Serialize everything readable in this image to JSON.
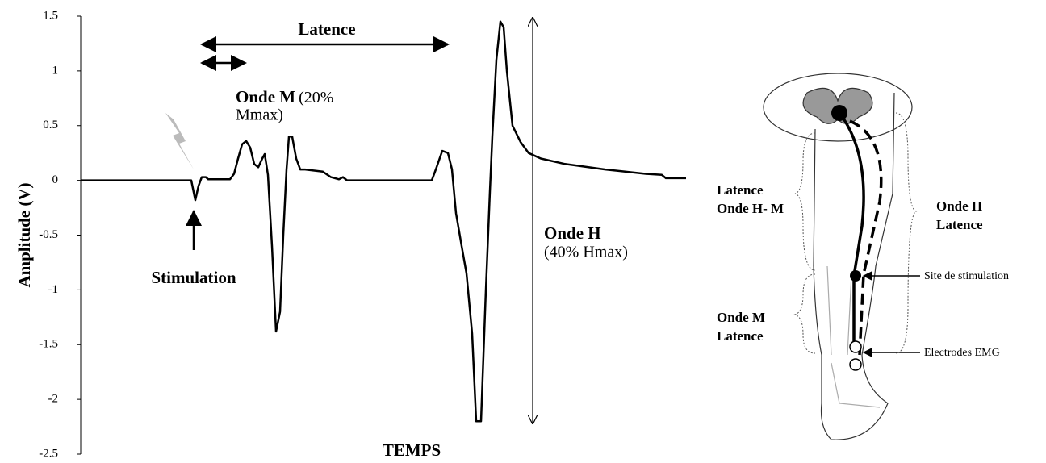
{
  "chart_data": {
    "type": "line",
    "ylabel": "Amplitude (V)",
    "xlabel": "TEMPS",
    "ylim": [
      -2.5,
      1.5
    ],
    "yticks": [
      1.5,
      1,
      0.5,
      0,
      -0.5,
      -1,
      -1.5,
      -2,
      -2.5
    ],
    "xlim": [
      0,
      750
    ],
    "color": "#000000",
    "x": [
      0,
      137,
      142,
      146,
      150,
      155,
      158,
      185,
      190,
      195,
      200,
      205,
      210,
      215,
      220,
      225,
      228,
      232,
      237,
      242,
      247,
      251,
      255,
      258,
      262,
      267,
      272,
      278,
      300,
      310,
      320,
      325,
      330,
      435,
      440,
      448,
      455,
      460,
      465,
      472,
      478,
      485,
      490,
      496,
      502,
      507,
      510,
      515,
      520,
      524,
      528,
      535,
      545,
      555,
      570,
      600,
      650,
      700,
      720,
      725,
      750
    ],
    "values": [
      0,
      0,
      -0.18,
      -0.05,
      0.03,
      0.03,
      0.01,
      0.01,
      0.06,
      0.2,
      0.33,
      0.36,
      0.3,
      0.15,
      0.12,
      0.2,
      0.24,
      0.05,
      -0.6,
      -1.38,
      -1.2,
      -0.5,
      0.1,
      0.4,
      0.4,
      0.2,
      0.1,
      0.1,
      0.08,
      0.03,
      0.01,
      0.03,
      0,
      0,
      0.1,
      0.27,
      0.25,
      0.1,
      -0.3,
      -0.6,
      -0.85,
      -1.4,
      -2.2,
      -2.2,
      -1.0,
      -0.1,
      0.4,
      1.1,
      1.45,
      1.4,
      1.0,
      0.5,
      0.35,
      0.25,
      0.2,
      0.15,
      0.1,
      0.06,
      0.05,
      0.02,
      0.02
    ],
    "annotations": {
      "latence": "Latence",
      "onde_m_bold": "Onde M",
      "onde_m_1": "(20%",
      "onde_m_2": "Mmax)",
      "stimulation": "Stimulation",
      "onde_h_bold": "Onde H",
      "onde_h_2": "(40% Hmax)"
    }
  },
  "diagram": {
    "latence_hm_1": "Latence",
    "latence_hm_2": "Onde H- M",
    "onde_h_1": "Onde H",
    "onde_h_2": "Latence",
    "onde_m_1": "Onde M",
    "onde_m_2": "Latence",
    "site": "Site de stimulation",
    "electrodes": "Electrodes EMG"
  }
}
